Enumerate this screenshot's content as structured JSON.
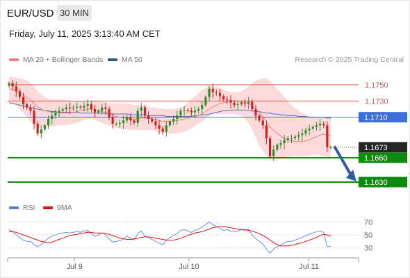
{
  "header": {
    "symbol": "EUR/USD",
    "interval": "30 MIN",
    "datetime": "Friday, July 11, 2025 3:13:40 AM CET",
    "credit": "Research © 2025 Trading Central"
  },
  "legend": [
    {
      "label": "MA 20 + Bollinger Bands",
      "color": "#f08080"
    },
    {
      "label": "MA 50",
      "color": "#2f5597"
    }
  ],
  "rsi_legend": [
    {
      "label": "RSI",
      "color": "#5b7fd6"
    },
    {
      "label": "9MA",
      "color": "#e01010"
    }
  ],
  "colors": {
    "up": "#2e8b2e",
    "down": "#d12020",
    "band": "#fdd6d6",
    "resistance": "#e05050",
    "pivot": "#3c6fd8",
    "support": "#0e8a0e",
    "last": "#262626",
    "arrow": "#2f5e9e"
  },
  "chart_data": [
    {
      "type": "candlestick",
      "x_ticks": [
        "Jul 9",
        "Jul 10",
        "Jul 11"
      ],
      "ylim": [
        1.1618,
        1.1762
      ],
      "levels": [
        {
          "label": "1.1750",
          "value": 1.175,
          "kind": "resistance"
        },
        {
          "label": "1.1730",
          "value": 1.173,
          "kind": "resistance"
        },
        {
          "label": "1.1710",
          "value": 1.171,
          "kind": "pivot"
        },
        {
          "label": "1.1673",
          "value": 1.1673,
          "kind": "last"
        },
        {
          "label": "1.1660",
          "value": 1.166,
          "kind": "support"
        },
        {
          "label": "1.1630",
          "value": 1.163,
          "kind": "support"
        }
      ],
      "close": [
        1.1752,
        1.1748,
        1.1742,
        1.1735,
        1.1726,
        1.1722,
        1.1718,
        1.1702,
        1.169,
        1.1695,
        1.17,
        1.1708,
        1.1712,
        1.1716,
        1.1718,
        1.172,
        1.1722,
        1.1721,
        1.1722,
        1.1723,
        1.1722,
        1.1724,
        1.1726,
        1.172,
        1.1716,
        1.1718,
        1.1722,
        1.172,
        1.171,
        1.1702,
        1.1702,
        1.1703,
        1.1706,
        1.171,
        1.1706,
        1.1703,
        1.1718,
        1.1722,
        1.1712,
        1.1708,
        1.1705,
        1.17,
        1.1696,
        1.1692,
        1.17,
        1.1705,
        1.1708,
        1.1712,
        1.1718,
        1.1719,
        1.1718,
        1.1716,
        1.1718,
        1.172,
        1.1725,
        1.1735,
        1.1745,
        1.1741,
        1.174,
        1.1736,
        1.1732,
        1.1731,
        1.1728,
        1.1725,
        1.1726,
        1.1728,
        1.1727,
        1.1729,
        1.172,
        1.1712,
        1.1706,
        1.17,
        1.1684,
        1.1662,
        1.167,
        1.1676,
        1.1678,
        1.1682,
        1.1684,
        1.1684,
        1.1686,
        1.1688,
        1.169,
        1.1694,
        1.1696,
        1.1698,
        1.17,
        1.1702,
        1.17,
        1.1673,
        1.1673
      ],
      "ma20": [
        1.1745,
        1.1744,
        1.1742,
        1.174,
        1.1737,
        1.1734,
        1.1731,
        1.1727,
        1.1723,
        1.172,
        1.1718,
        1.1717,
        1.1716,
        1.1715,
        1.1715,
        1.1715,
        1.1715,
        1.1715,
        1.1716,
        1.1717,
        1.1718,
        1.1719,
        1.172,
        1.172,
        1.1719,
        1.1718,
        1.1717,
        1.1716,
        1.1714,
        1.1712,
        1.1711,
        1.171,
        1.1709,
        1.1709,
        1.1708,
        1.1707,
        1.1708,
        1.1709,
        1.1709,
        1.1709,
        1.1708,
        1.1707,
        1.1706,
        1.1705,
        1.1705,
        1.1705,
        1.1705,
        1.1706,
        1.1707,
        1.1708,
        1.1709,
        1.171,
        1.1711,
        1.1712,
        1.1714,
        1.1717,
        1.172,
        1.1723,
        1.1725,
        1.1727,
        1.1728,
        1.1729,
        1.173,
        1.173,
        1.173,
        1.1729,
        1.1728,
        1.1727,
        1.1724,
        1.172,
        1.1716,
        1.1711,
        1.1705,
        1.1698,
        1.1694,
        1.169,
        1.1687,
        1.1684,
        1.1682,
        1.1681,
        1.168,
        1.168,
        1.168,
        1.1681,
        1.1682,
        1.1684,
        1.1686,
        1.1688,
        1.1689,
        1.1688,
        1.1687
      ],
      "upper": [
        1.176,
        1.176,
        1.1759,
        1.1758,
        1.1757,
        1.1755,
        1.1752,
        1.1748,
        1.1742,
        1.1738,
        1.1735,
        1.1733,
        1.1732,
        1.1732,
        1.1732,
        1.1732,
        1.1731,
        1.1731,
        1.173,
        1.173,
        1.173,
        1.173,
        1.173,
        1.1731,
        1.1731,
        1.173,
        1.1729,
        1.1728,
        1.1727,
        1.1727,
        1.1727,
        1.1727,
        1.1727,
        1.1727,
        1.1726,
        1.1725,
        1.1725,
        1.1725,
        1.1724,
        1.1723,
        1.1722,
        1.1722,
        1.1721,
        1.1721,
        1.172,
        1.172,
        1.172,
        1.1721,
        1.1722,
        1.1724,
        1.1728,
        1.1732,
        1.1736,
        1.174,
        1.1744,
        1.1746,
        1.1748,
        1.1748,
        1.1747,
        1.1746,
        1.1744,
        1.1742,
        1.1741,
        1.1741,
        1.1741,
        1.1742,
        1.1745,
        1.1748,
        1.1752,
        1.1755,
        1.1757,
        1.1758,
        1.1758,
        1.1755,
        1.175,
        1.1745,
        1.174,
        1.1735,
        1.173,
        1.1725,
        1.1721,
        1.1718,
        1.1715,
        1.1713,
        1.1712,
        1.1711,
        1.171,
        1.171,
        1.171,
        1.171,
        1.171
      ],
      "lower": [
        1.1728,
        1.1727,
        1.1724,
        1.172,
        1.1715,
        1.171,
        1.1705,
        1.17,
        1.1697,
        1.1697,
        1.1697,
        1.1698,
        1.1699,
        1.1699,
        1.17,
        1.17,
        1.17,
        1.1701,
        1.1702,
        1.1703,
        1.1705,
        1.1707,
        1.1708,
        1.1708,
        1.1707,
        1.1705,
        1.1703,
        1.1701,
        1.17,
        1.1698,
        1.1697,
        1.1696,
        1.1695,
        1.1695,
        1.1694,
        1.1694,
        1.1694,
        1.1694,
        1.1694,
        1.1694,
        1.1694,
        1.1693,
        1.1692,
        1.1691,
        1.169,
        1.169,
        1.169,
        1.169,
        1.1691,
        1.1692,
        1.1694,
        1.1696,
        1.1699,
        1.1702,
        1.1705,
        1.1708,
        1.1711,
        1.1713,
        1.1714,
        1.1714,
        1.1714,
        1.1714,
        1.1714,
        1.1714,
        1.1713,
        1.1712,
        1.1708,
        1.1703,
        1.1695,
        1.1685,
        1.1675,
        1.1668,
        1.1662,
        1.166,
        1.1659,
        1.1659,
        1.166,
        1.166,
        1.1661,
        1.1662,
        1.1662,
        1.1662,
        1.1662,
        1.1662,
        1.1663,
        1.1664,
        1.1664,
        1.1663,
        1.1662,
        1.1661,
        1.166
      ],
      "ma50": [
        1.1728,
        1.1727,
        1.1726,
        1.1725,
        1.1724,
        1.1723,
        1.1722,
        1.1721,
        1.172,
        1.1719,
        1.1718,
        1.1718,
        1.1717,
        1.1717,
        1.1716,
        1.1716,
        1.1716,
        1.1716,
        1.1716,
        1.1716,
        1.1715,
        1.1715,
        1.1715,
        1.1715,
        1.1715,
        1.1715,
        1.1715,
        1.1715,
        1.1714,
        1.1714,
        1.1714,
        1.1714,
        1.1714,
        1.1714,
        1.1713,
        1.1713,
        1.1713,
        1.1713,
        1.1713,
        1.1712,
        1.1712,
        1.1712,
        1.1712,
        1.1712,
        1.1711,
        1.1711,
        1.1711,
        1.1711,
        1.1711,
        1.1711,
        1.1711,
        1.1711,
        1.1712,
        1.1712,
        1.1713,
        1.1713,
        1.1714,
        1.1715,
        1.1716,
        1.1717,
        1.1718,
        1.1718,
        1.1719,
        1.1719,
        1.1719,
        1.1719,
        1.1719,
        1.1718,
        1.1718,
        1.1717,
        1.1717,
        1.1716,
        1.1715,
        1.1715,
        1.1714,
        1.1714,
        1.1713,
        1.1713,
        1.1712,
        1.1712,
        1.1712,
        1.1711,
        1.1711,
        1.1711,
        1.171,
        1.171,
        1.171,
        1.171,
        1.171,
        1.1709,
        1.1709
      ],
      "forecast": {
        "from": 1.1673,
        "to": 1.163
      }
    },
    {
      "type": "line",
      "name": "RSI",
      "y_ticks": [
        30,
        50,
        70
      ],
      "ylim": [
        20,
        80
      ],
      "rsi": [
        58,
        55,
        50,
        46,
        42,
        40,
        40,
        35,
        32,
        35,
        40,
        45,
        48,
        50,
        52,
        53,
        54,
        53,
        54,
        55,
        54,
        56,
        57,
        52,
        48,
        50,
        53,
        51,
        44,
        39,
        40,
        41,
        44,
        48,
        45,
        42,
        52,
        56,
        48,
        45,
        43,
        40,
        37,
        35,
        42,
        46,
        49,
        52,
        57,
        58,
        56,
        54,
        57,
        59,
        62,
        66,
        70,
        66,
        63,
        60,
        57,
        58,
        56,
        55,
        56,
        58,
        57,
        59,
        50,
        44,
        40,
        36,
        28,
        22,
        28,
        32,
        34,
        38,
        40,
        40,
        42,
        44,
        46,
        49,
        51,
        53,
        55,
        56,
        54,
        32,
        32
      ],
      "ma9": [
        55,
        55,
        54,
        52,
        50,
        48,
        46,
        44,
        42,
        40,
        39,
        38,
        39,
        41,
        43,
        45,
        47,
        49,
        50,
        51,
        52,
        53,
        54,
        54,
        53,
        53,
        53,
        52,
        51,
        49,
        47,
        45,
        44,
        43,
        43,
        44,
        45,
        46,
        47,
        47,
        46,
        45,
        44,
        43,
        42,
        42,
        42,
        43,
        45,
        47,
        49,
        51,
        53,
        54,
        55,
        57,
        59,
        61,
        62,
        63,
        63,
        62,
        61,
        60,
        59,
        58,
        58,
        57,
        56,
        54,
        52,
        49,
        46,
        42,
        38,
        35,
        33,
        33,
        33,
        34,
        35,
        37,
        38,
        40,
        42,
        44,
        46,
        49,
        51,
        50,
        48
      ]
    }
  ]
}
